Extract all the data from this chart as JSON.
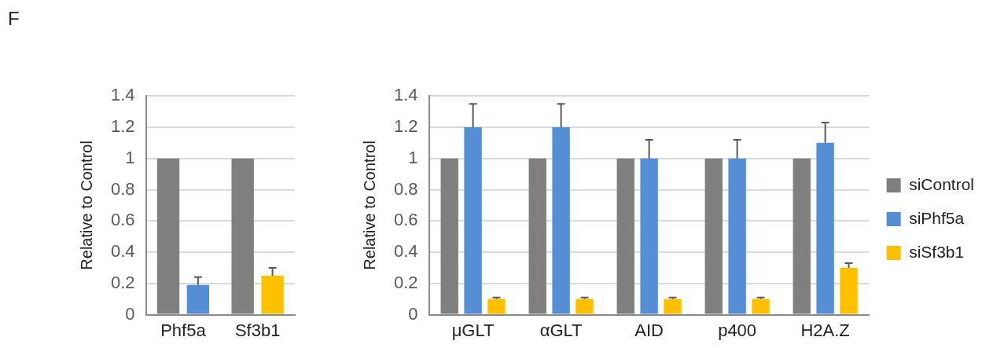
{
  "chart_data": [
    {
      "type": "bar",
      "annotations": [
        "F"
      ],
      "ylabel": "Relative to Control",
      "categories": [
        "Phf5a",
        "Sf3b1"
      ],
      "series": [
        {
          "color": "#7f7f7f",
          "values": [
            1,
            1
          ]
        },
        {
          "color": "#558ed5",
          "values": [
            0.19,
            null
          ],
          "errors": [
            [
              0.19,
              0.24
            ],
            null
          ]
        },
        {
          "color": "#ffc000",
          "values": [
            null,
            0.25
          ],
          "errors": [
            null,
            [
              0.25,
              0.3
            ]
          ]
        }
      ],
      "ylim": [
        0,
        1.4
      ],
      "yticks": [
        0,
        0.2,
        0.4,
        0.6,
        0.8,
        1,
        1.2,
        1.4
      ],
      "grid": "y",
      "legend": false
    },
    {
      "type": "bar",
      "ylabel": "Relative to Control",
      "categories": [
        "μGLT",
        "αGLT",
        "AID",
        "p400",
        "H2A.Z"
      ],
      "series": [
        {
          "name": "siControl",
          "color": "#7f7f7f",
          "values": [
            1,
            1,
            1,
            1,
            1
          ]
        },
        {
          "name": "siPhf5a",
          "color": "#558ed5",
          "values": [
            1.2,
            1.2,
            1,
            1,
            1.1
          ],
          "errors": [
            [
              1.2,
              1.35
            ],
            [
              1.2,
              1.35
            ],
            [
              1,
              1.12
            ],
            [
              1,
              1.12
            ],
            [
              1.1,
              1.23
            ]
          ]
        },
        {
          "name": "siSf3b1",
          "color": "#ffc000",
          "values": [
            0.1,
            0.1,
            0.1,
            0.1,
            0.3
          ],
          "errors": [
            [
              0.1,
              0.11
            ],
            [
              0.1,
              0.11
            ],
            [
              0.1,
              0.11
            ],
            [
              0.1,
              0.11
            ],
            [
              0.3,
              0.33
            ]
          ]
        }
      ],
      "ylim": [
        0,
        1.4
      ],
      "yticks": [
        0,
        0.2,
        0.4,
        0.6,
        0.8,
        1,
        1.2,
        1.4
      ],
      "grid": "y",
      "legend": "right"
    }
  ]
}
